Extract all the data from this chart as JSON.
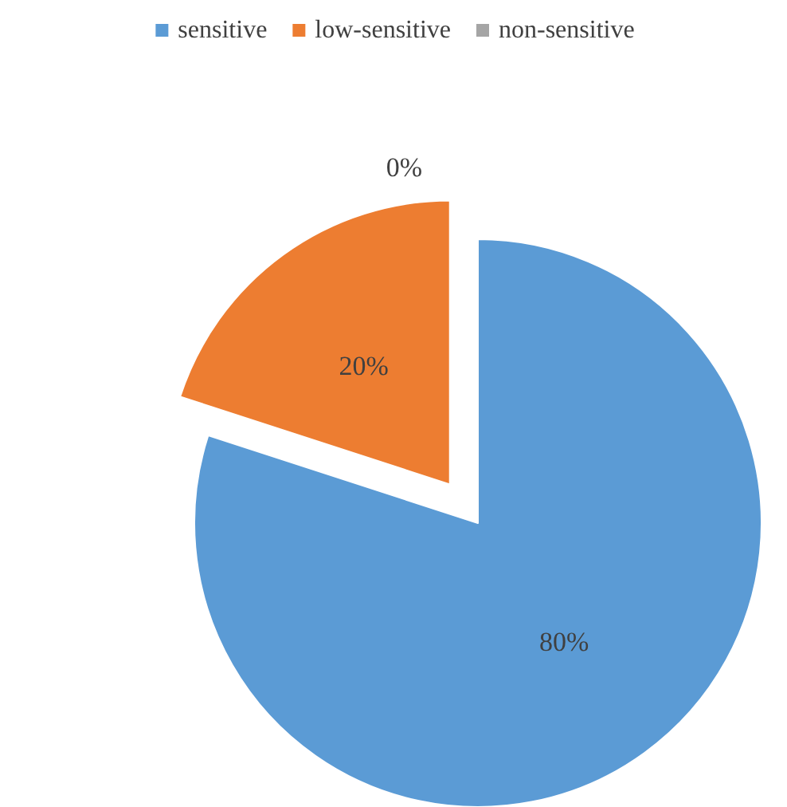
{
  "chart_data": {
    "type": "pie",
    "categories": [
      "sensitive",
      "low-sensitive",
      "non-sensitive"
    ],
    "values": [
      80,
      20,
      0
    ],
    "colors": [
      "#5b9bd5",
      "#ed7d31",
      "#a5a5a5"
    ],
    "value_labels": [
      "80%",
      "20%",
      "0%"
    ],
    "legend": "top"
  }
}
